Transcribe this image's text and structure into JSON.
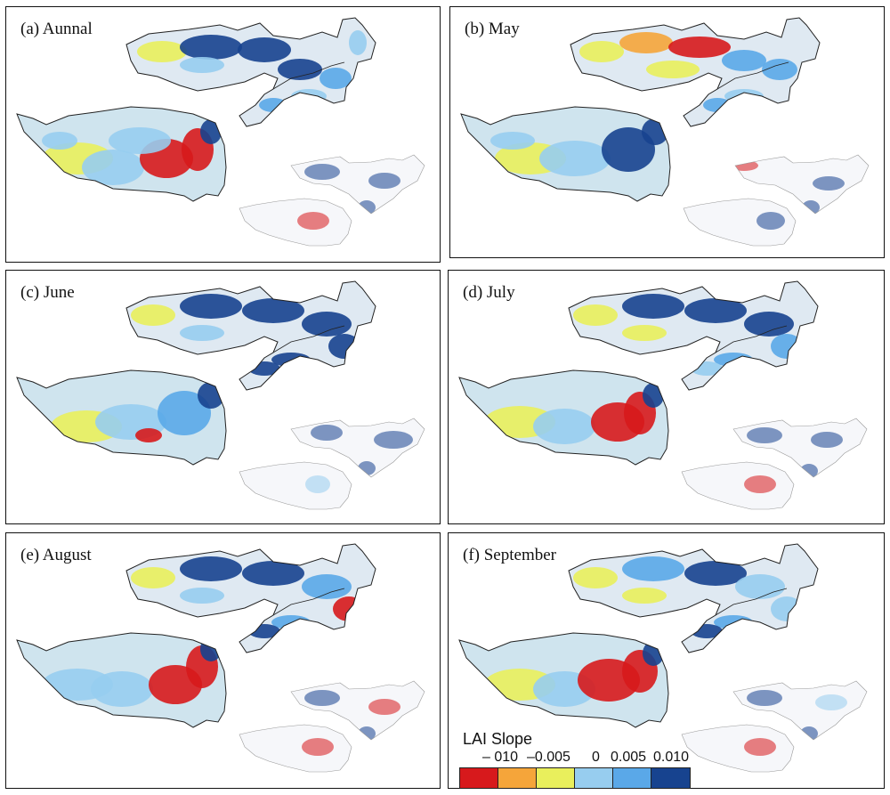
{
  "figure": {
    "panels": [
      {
        "label": "(a) Aunnal"
      },
      {
        "label": "(b) May"
      },
      {
        "label": "(c) June"
      },
      {
        "label": "(d) July"
      },
      {
        "label": "(e) August"
      },
      {
        "label": "(f) September"
      }
    ],
    "legend": {
      "title": "LAI Slope",
      "ticks": [
        "– 010",
        "–0.005",
        "0",
        "0.005",
        "0.010"
      ],
      "colors": [
        "#d7191c",
        "#f5a53a",
        "#e9ef5c",
        "#97cdef",
        "#5aa8e8",
        "#17438f"
      ]
    }
  }
}
